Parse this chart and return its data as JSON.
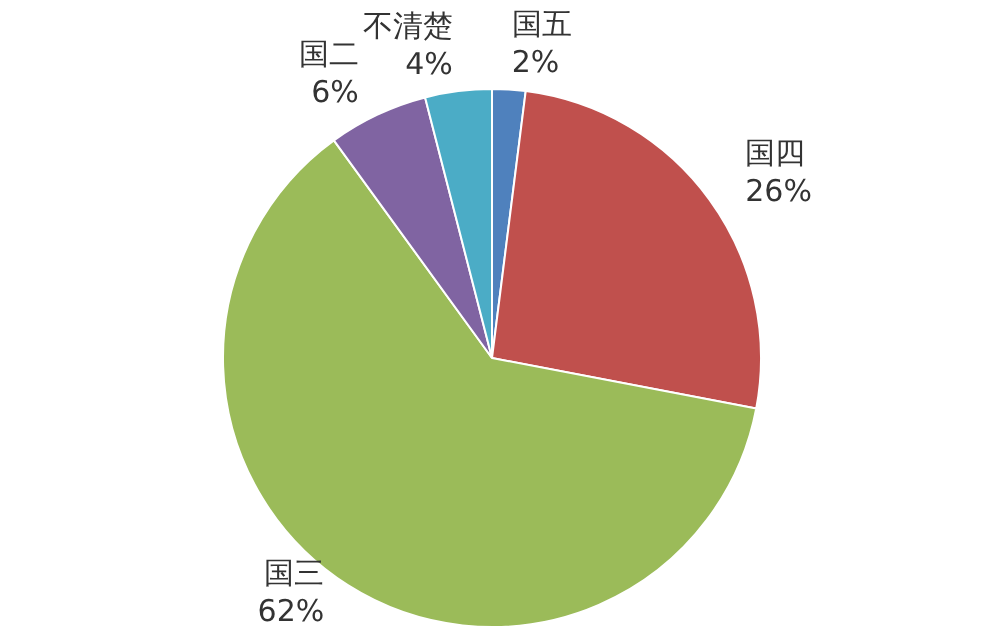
{
  "chart_data": {
    "type": "pie",
    "categories": [
      "国五",
      "国四",
      "国三",
      "国二",
      "不清楚"
    ],
    "values": [
      2,
      26,
      62,
      6,
      4
    ],
    "value_labels": [
      "2%",
      "26%",
      "62%",
      "6%",
      "4%"
    ],
    "colors": [
      "#4f81bd",
      "#c0504d",
      "#9bbb59",
      "#8064a2",
      "#4bacc6"
    ],
    "legend": false
  }
}
